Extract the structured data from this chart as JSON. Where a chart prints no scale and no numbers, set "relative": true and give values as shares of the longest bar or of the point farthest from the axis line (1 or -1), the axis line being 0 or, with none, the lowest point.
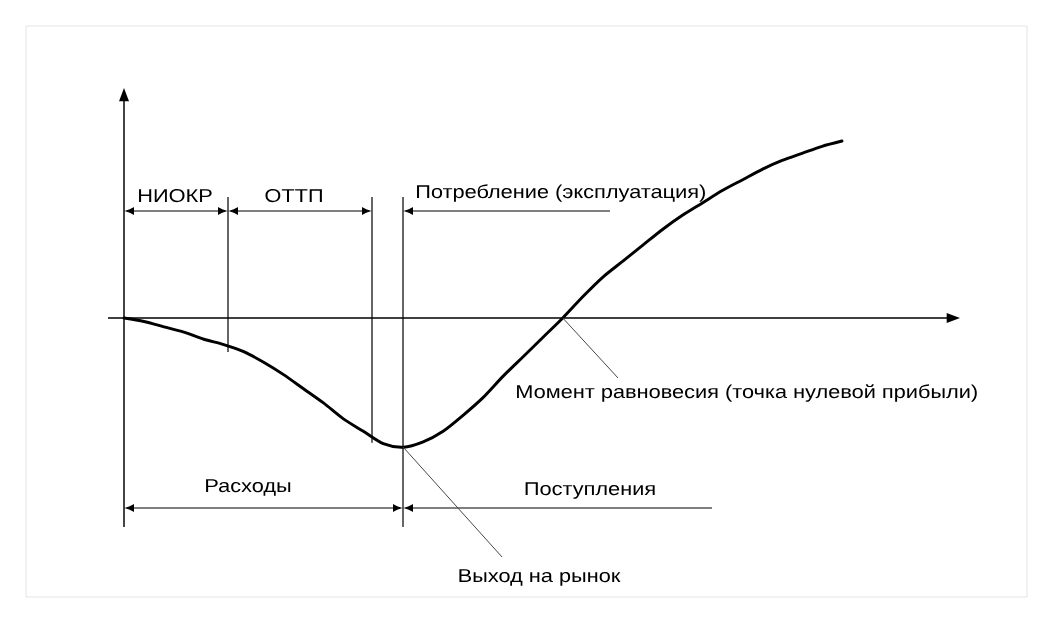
{
  "chart_data": {
    "type": "line",
    "relative": true,
    "categories": [
      null,
      null,
      null,
      null,
      null,
      null,
      null,
      null,
      null,
      null,
      null,
      null,
      null,
      null,
      null,
      null,
      null,
      null,
      null,
      null,
      null,
      null,
      null,
      null,
      null,
      null,
      null,
      null,
      null,
      null,
      null,
      null,
      null,
      null,
      null,
      null,
      null
    ],
    "series": [
      {
        "color": "#000000",
        "values": [
          0,
          -0.02,
          -0.05,
          -0.08,
          -0.12,
          -0.15,
          -0.19,
          -0.25,
          -0.32,
          -0.4,
          -0.48,
          -0.57,
          -0.64,
          -0.71,
          -0.73,
          -0.7,
          -0.64,
          -0.55,
          -0.45,
          -0.33,
          -0.22,
          -0.11,
          0,
          0.12,
          0.23,
          0.32,
          0.41,
          0.5,
          0.58,
          0.65,
          0.72,
          0.78,
          0.84,
          0.89,
          0.93,
          0.97,
          1
        ]
      }
    ],
    "annotations": [
      "НИОКР",
      "ОТТП",
      "Потребление (эксплуатация)",
      "Расходы",
      "Поступления",
      "Выход на рынок",
      "Момент равновесия (точка нулевой прибыли)"
    ],
    "marker": "none",
    "line_style": "solid"
  }
}
